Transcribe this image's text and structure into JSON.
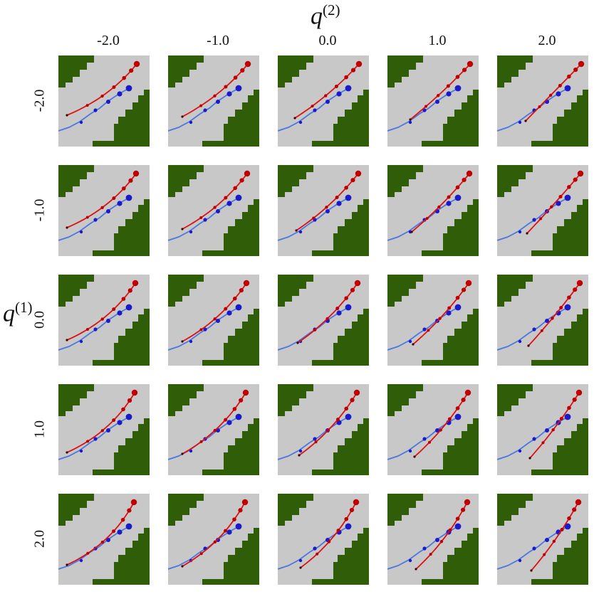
{
  "figure": {
    "col_axis_label": "q",
    "col_axis_sup": "(2)",
    "row_axis_label": "q",
    "row_axis_sup": "(1)",
    "col_values": [
      "-2.0",
      "-1.0",
      "0.0",
      "1.0",
      "2.0"
    ],
    "row_values": [
      "-2.0",
      "-1.0",
      "0.0",
      "1.0",
      "2.0"
    ]
  },
  "colors": {
    "corridor": "#c8c8c8",
    "obstacle": "#2f5d08",
    "reference_path": "#4a78e0",
    "reference_points": "#1a1acc",
    "predicted_path": "#dd1111",
    "predicted_points": "#c00000"
  }
}
